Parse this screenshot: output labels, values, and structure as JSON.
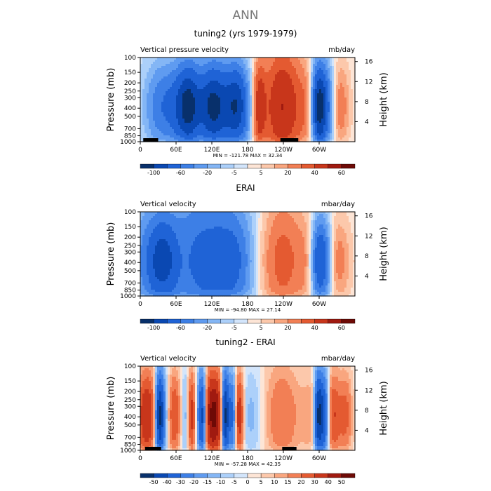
{
  "page": {
    "title": "ANN"
  },
  "colors": {
    "palette": [
      "#08306b",
      "#0a48b2",
      "#1f63d6",
      "#3d7fe6",
      "#5f9bf0",
      "#84b6f5",
      "#acd0fa",
      "#d3e5fb",
      "#fde5d6",
      "#fcc8ab",
      "#f9a67f",
      "#f27f55",
      "#e45a31",
      "#c8361b",
      "#a01a10",
      "#6e0a06"
    ]
  },
  "chart_data": [
    {
      "type": "heatmap",
      "title": "tuning2 (yrs 1979-1979)",
      "left_label": "Vertical pressure velocity",
      "units": "mb/day",
      "ylabel": "Pressure (mb)",
      "ylabel_right": "Height (km)",
      "pressure_ticks": [
        "100",
        "150",
        "200",
        "250",
        "300",
        "400",
        "500",
        "700",
        "850",
        "1000"
      ],
      "height_ticks": [
        "16",
        "12",
        "8",
        "4"
      ],
      "x_ticks": [
        "0",
        "60E",
        "120E",
        "180",
        "120W",
        "60W"
      ],
      "min": -121.78,
      "max": 32.34,
      "stats_label": "MIN = -121.78   MAX =  32.34",
      "colorbar_labels": [
        "-100",
        "-60",
        "-20",
        "-5",
        "5",
        "20",
        "40",
        "60"
      ],
      "features": [
        [
          0.03,
          0.07,
          0.22,
          -0.6
        ],
        [
          0.1,
          0.05,
          0.13,
          -5
        ],
        [
          0.15,
          0.03,
          0.15,
          -2
        ],
        [
          0.22,
          0.04,
          0.1,
          -13
        ],
        [
          0.34,
          0.05,
          0.1,
          -13
        ],
        [
          0.45,
          0.04,
          0.11,
          -11
        ],
        [
          0.555,
          0.02,
          0.08,
          7
        ],
        [
          0.66,
          0.06,
          0.22,
          9
        ],
        [
          0.78,
          0.04,
          0.15,
          3
        ],
        [
          0.83,
          0.025,
          0.09,
          -11
        ],
        [
          0.86,
          0.035,
          0.11,
          -6
        ],
        [
          0.93,
          0.03,
          0.1,
          4
        ]
      ],
      "black_boxes": [
        [
          5,
          30
        ],
        [
          235,
          265
        ]
      ]
    },
    {
      "type": "heatmap",
      "title": "ERAI",
      "left_label": "Vertical velocity",
      "units": "mbar/day",
      "ylabel": "Pressure (mb)",
      "ylabel_right": "Height (km)",
      "pressure_ticks": [
        "100",
        "150",
        "200",
        "250",
        "300",
        "400",
        "500",
        "700",
        "850",
        "1000"
      ],
      "height_ticks": [
        "16",
        "12",
        "8",
        "4"
      ],
      "x_ticks": [
        "0",
        "60E",
        "120E",
        "180",
        "120W",
        "60W"
      ],
      "min": -94.8,
      "max": 27.14,
      "stats_label": "MIN = -94.80   MAX =  27.14",
      "colorbar_labels": [
        "-100",
        "-60",
        "-20",
        "-5",
        "5",
        "20",
        "40",
        "60"
      ],
      "features": [
        [
          0.04,
          0.06,
          0.2,
          -4
        ],
        [
          0.1,
          0.04,
          0.14,
          -6
        ],
        [
          0.15,
          0.03,
          0.12,
          -1.5
        ],
        [
          0.31,
          0.14,
          0.28,
          -7
        ],
        [
          0.44,
          0.06,
          0.16,
          -3
        ],
        [
          0.54,
          0.05,
          0.12,
          0.8
        ],
        [
          0.66,
          0.07,
          0.24,
          5
        ],
        [
          0.79,
          0.04,
          0.14,
          2.5
        ],
        [
          0.83,
          0.03,
          0.1,
          -8
        ],
        [
          0.86,
          0.03,
          0.1,
          -4
        ],
        [
          0.92,
          0.04,
          0.14,
          3.5
        ]
      ],
      "black_boxes": []
    },
    {
      "type": "heatmap",
      "title": "tuning2 - ERAI",
      "left_label": "Vertical velocity",
      "units": "mbar/day",
      "ylabel": "Pressure (mb)",
      "ylabel_right": "Height (km)",
      "pressure_ticks": [
        "100",
        "150",
        "200",
        "250",
        "300",
        "400",
        "500",
        "700",
        "850",
        "1000"
      ],
      "height_ticks": [
        "16",
        "12",
        "8",
        "4"
      ],
      "x_ticks": [
        "0",
        "60E",
        "120E",
        "180",
        "120W",
        "60W"
      ],
      "min": -57.28,
      "max": 42.35,
      "stats_label": "MIN = -57.28   MAX =  42.35",
      "colorbar_labels": [
        "-50",
        "-40",
        "-30",
        "-20",
        "-15",
        "-10",
        "-5",
        "0",
        "5",
        "10",
        "15",
        "20",
        "30",
        "40",
        "50"
      ],
      "features": [
        [
          0.03,
          0.03,
          0.12,
          9
        ],
        [
          0.09,
          0.015,
          0.05,
          -13
        ],
        [
          0.12,
          0.02,
          0.07,
          -5
        ],
        [
          0.15,
          0.03,
          0.1,
          7
        ],
        [
          0.22,
          0.02,
          0.07,
          -6
        ],
        [
          0.235,
          0.015,
          0.05,
          11
        ],
        [
          0.29,
          0.015,
          0.05,
          -14
        ],
        [
          0.31,
          0.02,
          0.06,
          7
        ],
        [
          0.35,
          0.025,
          0.06,
          12
        ],
        [
          0.395,
          0.012,
          0.04,
          -14
        ],
        [
          0.43,
          0.015,
          0.05,
          -7
        ],
        [
          0.46,
          0.015,
          0.05,
          9
        ],
        [
          0.52,
          0.04,
          0.12,
          -2
        ],
        [
          0.66,
          0.06,
          0.2,
          4
        ],
        [
          0.81,
          0.04,
          0.14,
          2.5
        ],
        [
          0.83,
          0.015,
          0.05,
          -14
        ],
        [
          0.86,
          0.015,
          0.05,
          -10
        ],
        [
          0.9,
          0.03,
          0.1,
          6
        ],
        [
          0.96,
          0.02,
          0.07,
          4
        ]
      ],
      "black_boxes": [
        [
          8,
          35
        ],
        [
          238,
          262
        ]
      ]
    }
  ]
}
